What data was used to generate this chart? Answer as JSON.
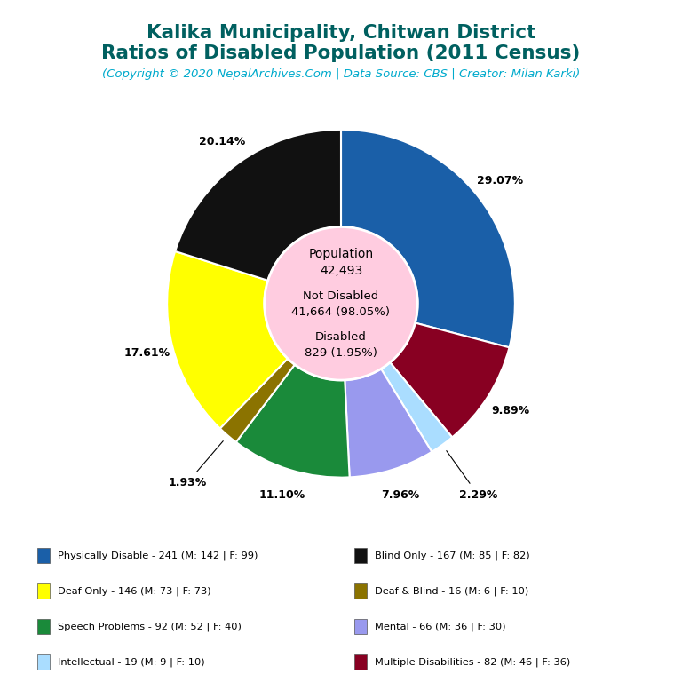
{
  "title_line1": "Kalika Municipality, Chitwan District",
  "title_line2": "Ratios of Disabled Population (2011 Census)",
  "subtitle": "(Copyright © 2020 NepalArchives.Com | Data Source: CBS | Creator: Milan Karki)",
  "title_color": "#006060",
  "subtitle_color": "#00aacc",
  "total_population": 42493,
  "not_disabled": 41664,
  "not_disabled_pct": 98.05,
  "disabled": 829,
  "disabled_pct": 1.95,
  "center_color": "#ffcce0",
  "segments": [
    {
      "label": "Physically Disable - 241 (M: 142 | F: 99)",
      "value": 241,
      "pct": 29.07,
      "color": "#1a5fa8"
    },
    {
      "label": "Multiple Disabilities - 82 (M: 46 | F: 36)",
      "value": 82,
      "pct": 9.89,
      "color": "#880022"
    },
    {
      "label": "Intellectual - 19 (M: 9 | F: 10)",
      "value": 19,
      "pct": 2.29,
      "color": "#aaddff"
    },
    {
      "label": "Mental - 66 (M: 36 | F: 30)",
      "value": 66,
      "pct": 7.96,
      "color": "#9999ee"
    },
    {
      "label": "Speech Problems - 92 (M: 52 | F: 40)",
      "value": 92,
      "pct": 11.1,
      "color": "#1a8a3a"
    },
    {
      "label": "Deaf & Blind - 16 (M: 6 | F: 10)",
      "value": 16,
      "pct": 1.93,
      "color": "#8b7300"
    },
    {
      "label": "Deaf Only - 146 (M: 73 | F: 73)",
      "value": 146,
      "pct": 17.61,
      "color": "#ffff00"
    },
    {
      "label": "Blind Only - 167 (M: 85 | F: 82)",
      "value": 167,
      "pct": 20.14,
      "color": "#111111"
    }
  ],
  "legend_rows": [
    [
      0,
      7
    ],
    [
      6,
      3
    ],
    [
      4,
      5
    ],
    [
      2,
      1
    ]
  ]
}
